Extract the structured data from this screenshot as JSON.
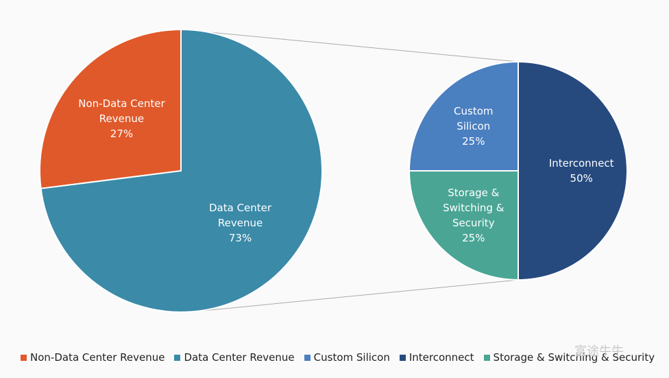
{
  "chart_data": [
    {
      "type": "pie",
      "categories": [
        "Non-Data Center Revenue",
        "Data Center Revenue"
      ],
      "values": [
        27,
        73
      ],
      "value_labels": [
        "27%",
        "73%"
      ],
      "colors": [
        "#e0592a",
        "#3a8aa8"
      ]
    },
    {
      "type": "pie",
      "categories": [
        "Custom Silicon",
        "Interconnect",
        "Storage & Switching & Security"
      ],
      "values": [
        25,
        50,
        25
      ],
      "value_labels": [
        "25%",
        "50%",
        "25%"
      ],
      "colors": [
        "#4a7fc0",
        "#264a7e",
        "#4aa595"
      ]
    }
  ],
  "watermark": "富途牛牛"
}
